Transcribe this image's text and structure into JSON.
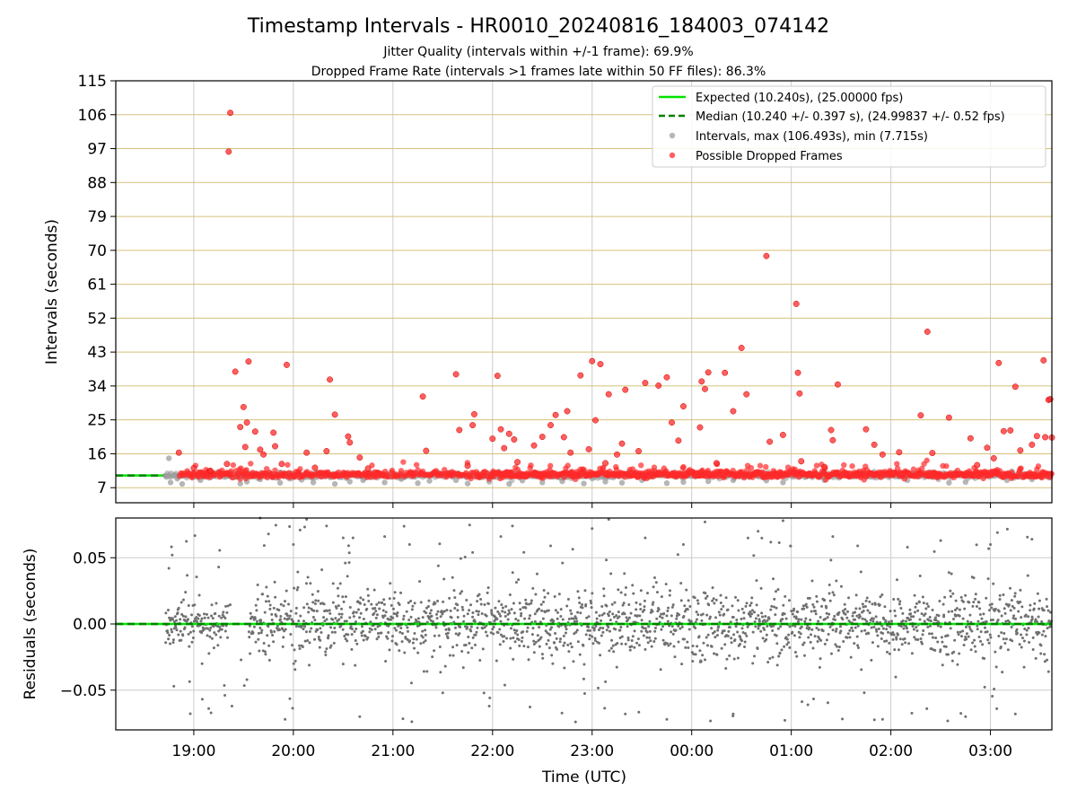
{
  "figure": {
    "title": "Timestamp Intervals - HR0010_20240816_184003_074142",
    "subtitle_1": "Jitter Quality (intervals within +/-1 frame): 69.9%",
    "subtitle_2": "Dropped Frame Rate (intervals >1 frames late within 50 FF files): 86.3%",
    "xlabel": "Time (UTC)"
  },
  "colors": {
    "expected": "#00e400",
    "median": "#008000",
    "intervals": "#9e9e9e",
    "dropped": "#ff2a2a",
    "residuals": "#707070",
    "hgrid": "#d6c07a",
    "vgrid": "#cccccc"
  },
  "chart_data": [
    {
      "type": "scatter",
      "ylabel": "Intervals (seconds)",
      "x_axis": {
        "start": "18:13",
        "end": "03:37",
        "ticks": [
          "19:00",
          "20:00",
          "21:00",
          "22:00",
          "23:00",
          "00:00",
          "01:00",
          "02:00",
          "03:00"
        ]
      },
      "ylim": [
        3,
        115
      ],
      "yticks": [
        7,
        16,
        25,
        34,
        43,
        52,
        61,
        70,
        79,
        88,
        97,
        106,
        115
      ],
      "grid": {
        "horizontal": true,
        "vertical": true
      },
      "legend": {
        "placement": "top-right",
        "entries": [
          "Expected (10.240s), (25.00000 fps)",
          "Median (10.240 +/- 0.397 s), (24.99837 +/- 0.52 fps)",
          "Intervals, max (106.493s), min (7.715s)",
          "Possible Dropped Frames"
        ]
      },
      "expected_value": 10.24,
      "median_value": 10.24,
      "series": [
        {
          "name": "Intervals, max (106.493s), min (7.715s)",
          "style": "gray-dots",
          "points": [
            [
              "18:43",
              10.2
            ],
            [
              "18:45",
              14.8
            ],
            [
              "18:46",
              8.4
            ],
            [
              "18:50",
              9.4
            ],
            [
              "18:53",
              8.0
            ],
            [
              "19:04",
              9.0
            ],
            [
              "19:13",
              10.9
            ],
            [
              "19:28",
              8.1
            ],
            [
              "19:32",
              8.6
            ],
            [
              "19:40",
              9.2
            ],
            [
              "19:52",
              8.3
            ],
            [
              "20:05",
              9.1
            ],
            [
              "20:12",
              8.4
            ],
            [
              "20:25",
              8.0
            ],
            [
              "20:34",
              8.6
            ],
            [
              "20:42",
              9.0
            ],
            [
              "20:55",
              8.4
            ],
            [
              "21:05",
              9.3
            ],
            [
              "21:15",
              8.2
            ],
            [
              "21:22",
              8.8
            ],
            [
              "21:38",
              9.0
            ],
            [
              "21:45",
              8.1
            ],
            [
              "21:58",
              8.6
            ],
            [
              "22:10",
              8.0
            ],
            [
              "22:18",
              8.9
            ],
            [
              "22:30",
              8.4
            ],
            [
              "22:42",
              8.7
            ],
            [
              "22:55",
              8.1
            ],
            [
              "23:08",
              8.6
            ],
            [
              "23:18",
              8.3
            ],
            [
              "23:30",
              9.0
            ],
            [
              "23:45",
              8.2
            ],
            [
              "23:55",
              8.5
            ],
            [
              "00:10",
              8.7
            ],
            [
              "00:25",
              9.0
            ],
            [
              "00:45",
              8.9
            ],
            [
              "00:55",
              8.4
            ],
            [
              "01:20",
              9.0
            ],
            [
              "01:40",
              10.9
            ],
            [
              "01:50",
              11.2
            ],
            [
              "02:10",
              9.0
            ],
            [
              "02:35",
              8.3
            ],
            [
              "02:45",
              8.5
            ],
            [
              "03:10",
              9.0
            ],
            [
              "03:25",
              9.2
            ]
          ]
        },
        {
          "name": "Possible Dropped Frames",
          "style": "red-dots",
          "band_value": 10.5,
          "band_start": "18:51",
          "band_end": "03:37",
          "points": [
            [
              "18:51",
              16.3
            ],
            [
              "19:00",
              12.2
            ],
            [
              "19:10",
              11.5
            ],
            [
              "19:20",
              13.3
            ],
            [
              "19:21",
              96.2
            ],
            [
              "19:22",
              106.5
            ],
            [
              "19:25",
              37.8
            ],
            [
              "19:28",
              23.1
            ],
            [
              "19:30",
              28.4
            ],
            [
              "19:31",
              17.8
            ],
            [
              "19:32",
              24.3
            ],
            [
              "19:33",
              40.5
            ],
            [
              "19:37",
              21.9
            ],
            [
              "19:40",
              17.1
            ],
            [
              "19:42",
              15.8
            ],
            [
              "19:48",
              21.6
            ],
            [
              "19:49",
              18.0
            ],
            [
              "19:53",
              13.3
            ],
            [
              "19:56",
              39.6
            ],
            [
              "20:08",
              16.3
            ],
            [
              "20:13",
              12.3
            ],
            [
              "20:20",
              16.7
            ],
            [
              "20:22",
              35.7
            ],
            [
              "20:25",
              26.4
            ],
            [
              "20:33",
              20.6
            ],
            [
              "20:34",
              19.0
            ],
            [
              "20:40",
              15.0
            ],
            [
              "20:45",
              12.1
            ],
            [
              "21:18",
              31.2
            ],
            [
              "21:20",
              16.8
            ],
            [
              "21:38",
              37.1
            ],
            [
              "21:40",
              22.3
            ],
            [
              "21:45",
              12.8
            ],
            [
              "21:48",
              23.6
            ],
            [
              "21:49",
              26.5
            ],
            [
              "22:00",
              20.0
            ],
            [
              "22:03",
              36.7
            ],
            [
              "22:05",
              22.5
            ],
            [
              "22:07",
              17.5
            ],
            [
              "22:10",
              21.3
            ],
            [
              "22:13",
              19.8
            ],
            [
              "22:15",
              13.8
            ],
            [
              "22:25",
              18.2
            ],
            [
              "22:30",
              20.5
            ],
            [
              "22:35",
              23.6
            ],
            [
              "22:38",
              26.3
            ],
            [
              "22:43",
              20.4
            ],
            [
              "22:45",
              27.3
            ],
            [
              "22:47",
              16.3
            ],
            [
              "22:53",
              36.8
            ],
            [
              "22:58",
              17.2
            ],
            [
              "23:00",
              40.6
            ],
            [
              "23:02",
              24.9
            ],
            [
              "23:05",
              39.8
            ],
            [
              "23:08",
              13.5
            ],
            [
              "23:10",
              31.8
            ],
            [
              "23:15",
              15.8
            ],
            [
              "23:18",
              18.7
            ],
            [
              "23:20",
              33.0
            ],
            [
              "23:28",
              16.7
            ],
            [
              "23:32",
              34.8
            ],
            [
              "23:40",
              34.1
            ],
            [
              "23:45",
              36.3
            ],
            [
              "23:48",
              24.3
            ],
            [
              "23:52",
              19.5
            ],
            [
              "23:55",
              28.6
            ],
            [
              "00:05",
              23.0
            ],
            [
              "00:06",
              35.2
            ],
            [
              "00:08",
              33.2
            ],
            [
              "00:10",
              37.6
            ],
            [
              "00:15",
              13.5
            ],
            [
              "00:20",
              37.5
            ],
            [
              "00:25",
              27.3
            ],
            [
              "00:30",
              44.1
            ],
            [
              "00:33",
              31.8
            ],
            [
              "00:45",
              68.5
            ],
            [
              "00:47",
              19.2
            ],
            [
              "00:55",
              21.0
            ],
            [
              "01:03",
              55.8
            ],
            [
              "01:04",
              37.5
            ],
            [
              "01:05",
              32.0
            ],
            [
              "01:06",
              14.0
            ],
            [
              "01:20",
              12.5
            ],
            [
              "01:24",
              22.3
            ],
            [
              "01:25",
              19.6
            ],
            [
              "01:28",
              34.4
            ],
            [
              "01:45",
              22.5
            ],
            [
              "01:50",
              18.4
            ],
            [
              "01:55",
              15.8
            ],
            [
              "02:05",
              16.4
            ],
            [
              "02:18",
              26.2
            ],
            [
              "02:22",
              48.4
            ],
            [
              "02:25",
              16.2
            ],
            [
              "02:35",
              25.6
            ],
            [
              "02:48",
              20.1
            ],
            [
              "02:52",
              13.0
            ],
            [
              "02:58",
              17.6
            ],
            [
              "03:02",
              14.8
            ],
            [
              "03:05",
              40.1
            ],
            [
              "03:08",
              22.0
            ],
            [
              "03:12",
              22.2
            ],
            [
              "03:15",
              33.8
            ],
            [
              "03:18",
              16.9
            ],
            [
              "03:25",
              18.4
            ],
            [
              "03:28",
              20.7
            ],
            [
              "03:32",
              40.8
            ],
            [
              "03:33",
              20.4
            ],
            [
              "03:35",
              30.3
            ],
            [
              "03:36",
              30.5
            ],
            [
              "03:37",
              20.3
            ]
          ]
        }
      ]
    },
    {
      "type": "scatter",
      "ylabel": "Residuals (seconds)",
      "x_axis": {
        "start": "18:13",
        "end": "03:37",
        "ticks": [
          "19:00",
          "20:00",
          "21:00",
          "22:00",
          "23:00",
          "00:00",
          "01:00",
          "02:00",
          "03:00"
        ]
      },
      "ylim": [
        -0.08,
        0.08
      ],
      "yticks": [
        0.05,
        0.0,
        -0.05
      ],
      "ytick_labels": [
        "0.05",
        "0.00",
        "−0.05"
      ],
      "grid": {
        "horizontal": true,
        "vertical": true
      },
      "reference_value": 0.0,
      "series": [
        {
          "name": "",
          "style": "gray-dots",
          "data_start": "18:43",
          "data_end": "03:37",
          "points": [
            [
              "18:45",
              0.042
            ],
            [
              "18:47",
              0.052
            ],
            [
              "18:48",
              -0.047
            ],
            [
              "18:55",
              0.024
            ],
            [
              "19:05",
              -0.03
            ],
            [
              "19:15",
              0.043
            ],
            [
              "19:23",
              -0.062
            ],
            [
              "19:32",
              -0.042
            ],
            [
              "19:40",
              0.08
            ],
            [
              "19:45",
              0.068
            ],
            [
              "19:55",
              -0.072
            ],
            [
              "20:00",
              0.06
            ],
            [
              "20:08",
              0.079
            ],
            [
              "20:20",
              0.074
            ],
            [
              "20:30",
              0.065
            ],
            [
              "20:40",
              -0.07
            ],
            [
              "20:55",
              0.066
            ],
            [
              "21:10",
              0.06
            ],
            [
              "21:30",
              -0.052
            ],
            [
              "21:48",
              0.054
            ],
            [
              "21:58",
              -0.062
            ],
            [
              "22:05",
              0.066
            ],
            [
              "22:12",
              0.074
            ],
            [
              "22:35",
              0.059
            ],
            [
              "22:50",
              -0.074
            ],
            [
              "23:00",
              0.072
            ],
            [
              "23:10",
              0.079
            ],
            [
              "23:20",
              -0.068
            ],
            [
              "23:32",
              0.065
            ],
            [
              "23:45",
              -0.072
            ],
            [
              "23:55",
              0.06
            ],
            [
              "00:08",
              0.077
            ],
            [
              "00:25",
              -0.068
            ],
            [
              "00:40",
              0.07
            ],
            [
              "00:55",
              0.078
            ],
            [
              "01:10",
              -0.061
            ],
            [
              "01:25",
              0.066
            ],
            [
              "01:40",
              0.059
            ],
            [
              "01:55",
              -0.072
            ],
            [
              "02:10",
              0.058
            ],
            [
              "02:30",
              0.063
            ],
            [
              "02:45",
              -0.07
            ],
            [
              "03:00",
              0.06
            ],
            [
              "03:15",
              -0.068
            ],
            [
              "03:25",
              0.064
            ],
            [
              "03:35",
              -0.036
            ]
          ]
        }
      ]
    }
  ]
}
